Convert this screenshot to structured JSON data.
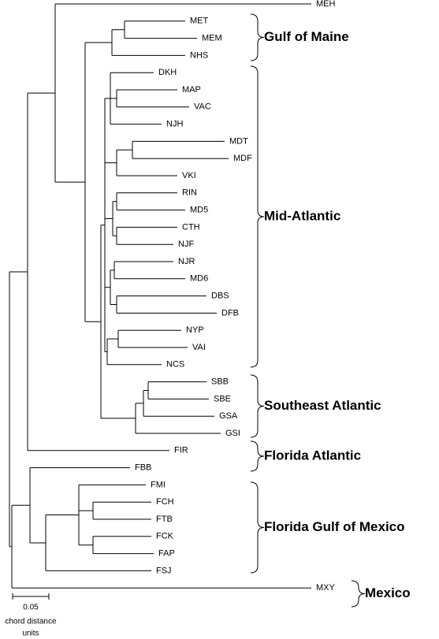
{
  "leaves": [
    "MEH",
    "MET",
    "MEM",
    "NHS",
    "DKH",
    "MAP",
    "VAC",
    "NJH",
    "MDT",
    "MDF",
    "VKI",
    "RIN",
    "MD5",
    "CTH",
    "NJF",
    "NJR",
    "MD6",
    "DBS",
    "DFB",
    "NYP",
    "VAI",
    "NCS",
    "SBB",
    "SBE",
    "GSA",
    "GSI",
    "FIR",
    "FBB",
    "FMI",
    "FCH",
    "FTB",
    "FCK",
    "FAP",
    "FSJ",
    "MXY"
  ],
  "groups": [
    "Gulf of Maine",
    "Mid-Atlantic",
    "Southeast Atlantic",
    "Florida Atlantic",
    "Florida Gulf of Mexico",
    "Mexico"
  ],
  "scale_bar": {
    "value": "0.05",
    "unit_lines": [
      "chord distance",
      "units"
    ]
  }
}
